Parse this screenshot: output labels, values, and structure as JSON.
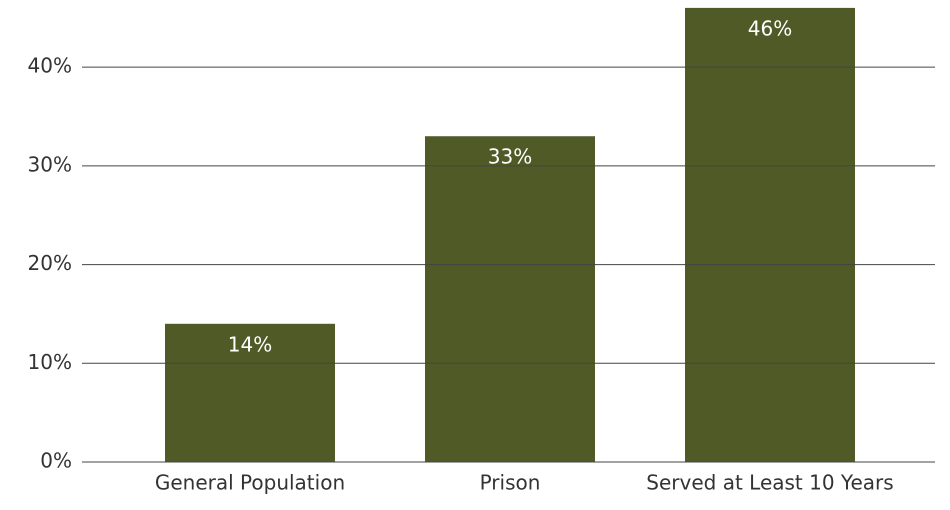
{
  "chart_data": {
    "type": "bar",
    "categories": [
      "General Population",
      "Prison",
      "Served at Least 10 Years"
    ],
    "values": [
      14,
      33,
      46
    ],
    "value_labels": [
      "14%",
      "33%",
      "46%"
    ],
    "color": "#4f5a27",
    "ylim": [
      0,
      46.8
    ],
    "yticks": [
      {
        "value": 0,
        "label": "0%"
      },
      {
        "value": 10,
        "label": "10%"
      },
      {
        "value": 20,
        "label": "20%"
      },
      {
        "value": 30,
        "label": "30%"
      },
      {
        "value": 40,
        "label": "40%"
      }
    ],
    "grid": true
  }
}
